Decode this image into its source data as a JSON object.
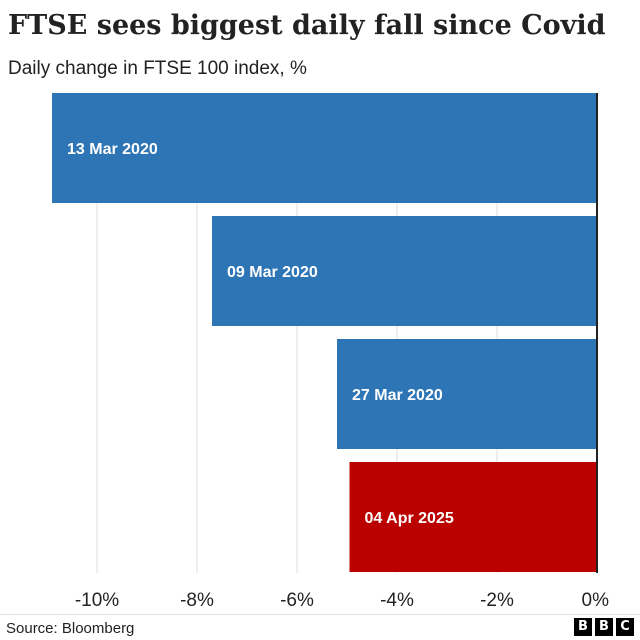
{
  "title": "FTSE sees biggest daily fall since Covid",
  "subtitle": "Daily change in FTSE 100 index, %",
  "source": "Source: Bloomberg",
  "logo": {
    "letters": [
      "B",
      "B",
      "C"
    ]
  },
  "colors": {
    "default_bar": "#2e75b6",
    "highlight_bar": "#bb0000",
    "bar_label": "#ffffff",
    "gridline": "#dddddd",
    "zero_line": "#222222",
    "tick_label": "#222222"
  },
  "chart_data": {
    "type": "bar",
    "orientation": "horizontal",
    "title": "FTSE sees biggest daily fall since Covid",
    "subtitle": "Daily change in FTSE 100 index, %",
    "xlabel": "",
    "ylabel": "",
    "xlim": [
      -11,
      0
    ],
    "xticks": [
      -10,
      -8,
      -6,
      -4,
      -2,
      0
    ],
    "xtick_labels": [
      "-10%",
      "-8%",
      "-6%",
      "-4%",
      "-2%",
      "0%"
    ],
    "categories": [
      "13 Mar 2020",
      "09 Mar 2020",
      "27 Mar 2020",
      "04 Apr 2025"
    ],
    "values": [
      -10.9,
      -7.7,
      -5.2,
      -4.95
    ],
    "highlight": [
      false,
      false,
      false,
      true
    ],
    "grid": true,
    "legend": "none"
  }
}
